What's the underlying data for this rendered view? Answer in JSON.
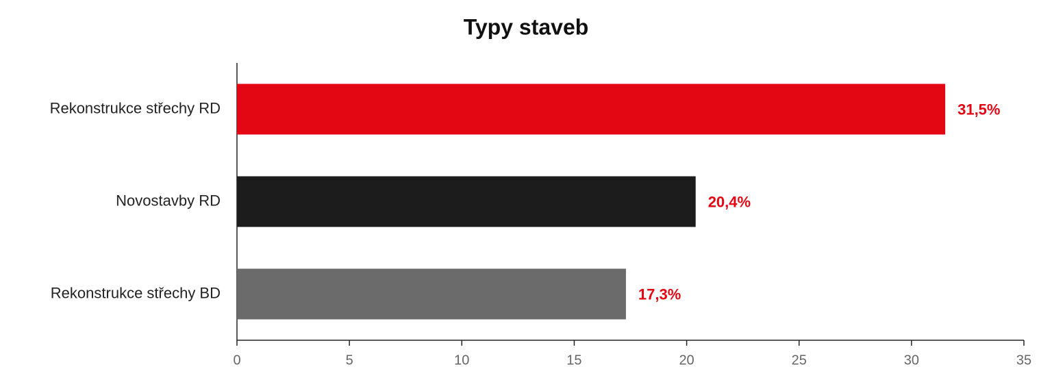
{
  "chart_data": {
    "type": "bar",
    "orientation": "horizontal",
    "title": "Typy staveb",
    "categories": [
      "Rekonstrukce střechy RD",
      "Novostavby RD",
      "Rekonstrukce střechy BD"
    ],
    "values": [
      31.5,
      20.4,
      17.3
    ],
    "value_labels": [
      "31,5%",
      "20,4%",
      "17,3%"
    ],
    "colors": [
      "#e30613",
      "#1c1c1c",
      "#6b6b6b"
    ],
    "xlim": [
      0,
      35
    ],
    "xticks": [
      0,
      5,
      10,
      15,
      20,
      25,
      30,
      35
    ],
    "grid": false
  }
}
